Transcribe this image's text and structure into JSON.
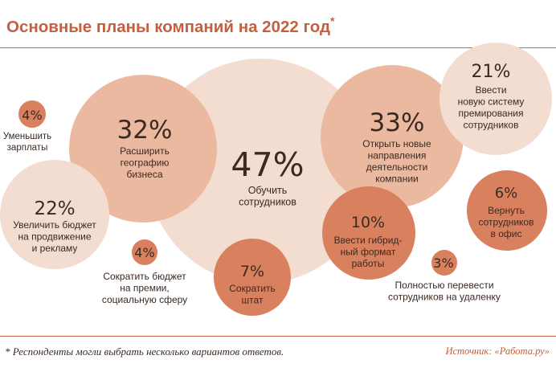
{
  "header": {
    "title": "Основные планы компаний на 2022 год",
    "title_mark": "*"
  },
  "footer": {
    "note": "* Респонденты могли выбрать несколько вариантов ответов.",
    "source": "Источник: «Работа.ру»"
  },
  "colors": {
    "accent": "#c4603f",
    "rule": "#c8654a",
    "bubble_light": "#f3ddd0",
    "bubble_mid": "#ebb99f",
    "bubble_dark": "#d9805f",
    "text": "#3a2a22"
  },
  "chart_data": {
    "type": "bubble",
    "unit": "%",
    "title": "Основные планы компаний на 2022 год",
    "items": [
      {
        "id": "reduce-salaries",
        "value": 4,
        "value_label": "4%",
        "label_lines": [
          "Уменьшить",
          "зарплаты"
        ],
        "tone": "dark"
      },
      {
        "id": "promotion-budget",
        "value": 22,
        "value_label": "22%",
        "label_lines": [
          "Увеличить бюджет",
          "на продвижение",
          "и рекламу"
        ],
        "tone": "light"
      },
      {
        "id": "expand-geography",
        "value": 32,
        "value_label": "32%",
        "label_lines": [
          "Расширить",
          "географию",
          "бизнеса"
        ],
        "tone": "mid"
      },
      {
        "id": "train-staff",
        "value": 47,
        "value_label": "47%",
        "label_lines": [
          "Обучить",
          "сотрудников"
        ],
        "tone": "light"
      },
      {
        "id": "new-directions",
        "value": 33,
        "value_label": "33%",
        "label_lines": [
          "Открыть новые",
          "направления",
          "деятельности",
          "компании"
        ],
        "tone": "mid"
      },
      {
        "id": "new-bonus-system",
        "value": 21,
        "value_label": "21%",
        "label_lines": [
          "Ввести",
          "новую систему",
          "премирования",
          "сотрудников"
        ],
        "tone": "light"
      },
      {
        "id": "cut-bonus-budget",
        "value": 4,
        "value_label": "4%",
        "label_lines": [
          "Сократить бюджет",
          "на премии,",
          "социальную сферу"
        ],
        "tone": "dark"
      },
      {
        "id": "cut-staff",
        "value": 7,
        "value_label": "7%",
        "label_lines": [
          "Сократить",
          "штат"
        ],
        "tone": "dark"
      },
      {
        "id": "hybrid-format",
        "value": 10,
        "value_label": "10%",
        "label_lines": [
          "Ввести гибрид-",
          "ный формат",
          "работы"
        ],
        "tone": "dark"
      },
      {
        "id": "return-to-office",
        "value": 6,
        "value_label": "6%",
        "label_lines": [
          "Вернуть",
          "сотрудников",
          "в офис"
        ],
        "tone": "dark"
      },
      {
        "id": "full-remote",
        "value": 3,
        "value_label": "3%",
        "label_lines": [
          "Полностью перевести",
          "сотрудников на удаленку"
        ],
        "tone": "dark"
      }
    ]
  }
}
